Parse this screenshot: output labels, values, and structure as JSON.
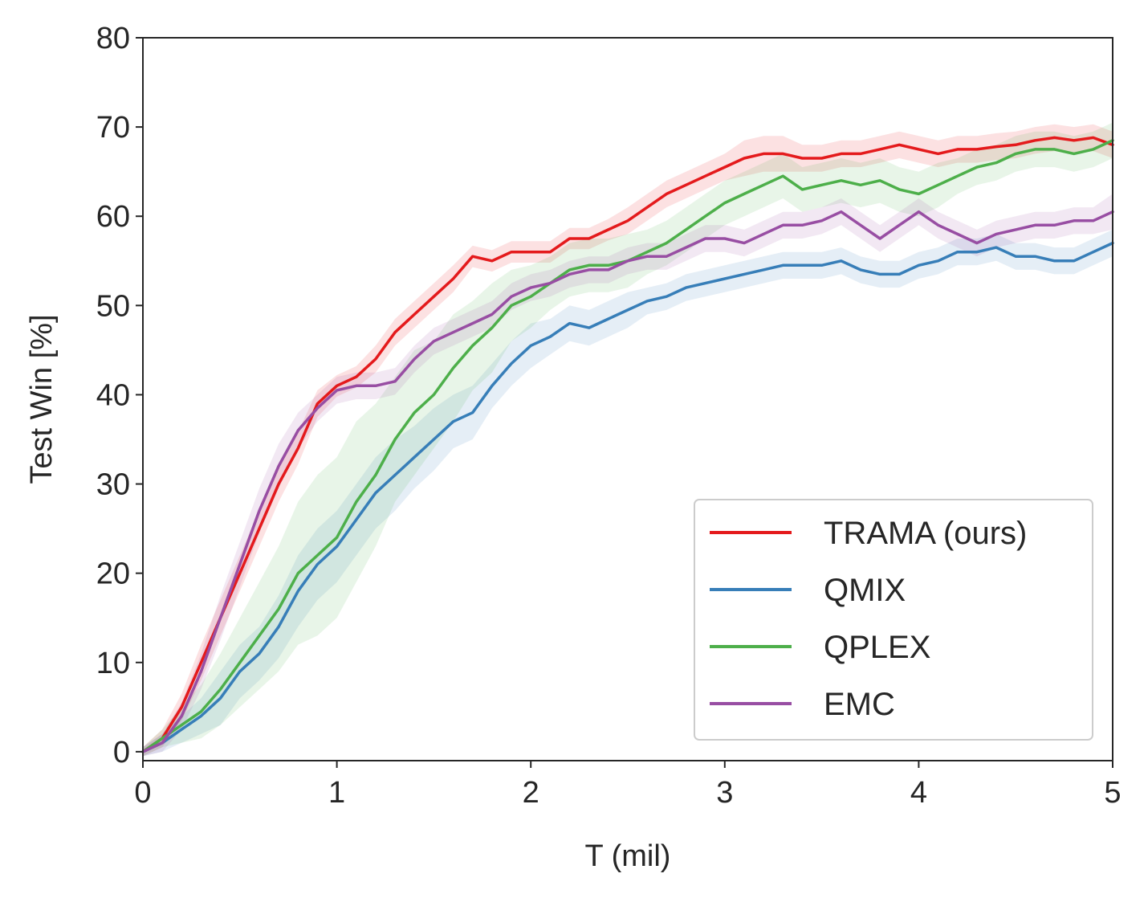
{
  "chart_data": {
    "type": "line",
    "title": "",
    "xlabel": "T (mil)",
    "ylabel": "Test Win [%]",
    "xlim": [
      0,
      5
    ],
    "ylim": [
      -1,
      80
    ],
    "xticks": [
      "0",
      "1",
      "2",
      "3",
      "4",
      "5"
    ],
    "yticks": [
      "0",
      "10",
      "20",
      "30",
      "40",
      "50",
      "60",
      "70",
      "80"
    ],
    "grid": false,
    "legend_position": "lower-right",
    "series": [
      {
        "name": "TRAMA (ours)",
        "color": "#e41a1c",
        "x": [
          0,
          0.1,
          0.2,
          0.3,
          0.4,
          0.5,
          0.6,
          0.7,
          0.8,
          0.9,
          1.0,
          1.1,
          1.2,
          1.3,
          1.4,
          1.5,
          1.6,
          1.7,
          1.8,
          1.9,
          2.0,
          2.1,
          2.2,
          2.3,
          2.4,
          2.5,
          2.6,
          2.7,
          2.8,
          2.9,
          3.0,
          3.1,
          3.2,
          3.3,
          3.4,
          3.5,
          3.6,
          3.7,
          3.8,
          3.9,
          4.0,
          4.1,
          4.2,
          4.3,
          4.4,
          4.5,
          4.6,
          4.7,
          4.8,
          4.9,
          5.0
        ],
        "values": [
          0,
          1.5,
          5,
          10,
          15,
          20,
          25,
          30,
          34,
          39,
          41,
          42,
          44,
          47,
          49,
          51,
          53,
          55.5,
          55,
          56,
          56,
          56,
          57.5,
          57.5,
          58.5,
          59.5,
          61,
          62.5,
          63.5,
          64.5,
          65.5,
          66.5,
          67,
          67,
          66.5,
          66.5,
          67,
          67,
          67.5,
          68,
          67.5,
          67,
          67.5,
          67.5,
          67.8,
          68,
          68.5,
          68.8,
          68.5,
          68.8,
          68
        ],
        "band": [
          0.5,
          1,
          1.5,
          2,
          2,
          2,
          2,
          2,
          1.8,
          1.5,
          1.2,
          1.2,
          1.5,
          1.5,
          1.5,
          1.5,
          1.5,
          1.2,
          1.2,
          1.2,
          1.2,
          1.2,
          1.2,
          1.2,
          1.2,
          1.5,
          1.5,
          1.5,
          1.5,
          1.5,
          1.5,
          2,
          2,
          2,
          1.5,
          1.5,
          1.5,
          1.5,
          1.5,
          1.5,
          1.5,
          1.5,
          1.5,
          1.5,
          1.5,
          1.5,
          1.5,
          1.5,
          1.5,
          1.5,
          1.5
        ]
      },
      {
        "name": "QMIX",
        "color": "#377eb8",
        "x": [
          0,
          0.1,
          0.2,
          0.3,
          0.4,
          0.5,
          0.6,
          0.7,
          0.8,
          0.9,
          1.0,
          1.1,
          1.2,
          1.3,
          1.4,
          1.5,
          1.6,
          1.7,
          1.8,
          1.9,
          2.0,
          2.1,
          2.2,
          2.3,
          2.4,
          2.5,
          2.6,
          2.7,
          2.8,
          2.9,
          3.0,
          3.1,
          3.2,
          3.3,
          3.4,
          3.5,
          3.6,
          3.7,
          3.8,
          3.9,
          4.0,
          4.1,
          4.2,
          4.3,
          4.4,
          4.5,
          4.6,
          4.7,
          4.8,
          4.9,
          5.0
        ],
        "values": [
          0,
          1,
          2.5,
          4,
          6,
          9,
          11,
          14,
          18,
          21,
          23,
          26,
          29,
          31,
          33,
          35,
          37,
          38,
          41,
          43.5,
          45.5,
          46.5,
          48,
          47.5,
          48.5,
          49.5,
          50.5,
          51,
          52,
          52.5,
          53,
          53.5,
          54,
          54.5,
          54.5,
          54.5,
          55,
          54,
          53.5,
          53.5,
          54.5,
          55,
          56,
          56,
          56.5,
          55.5,
          55.5,
          55,
          55,
          56,
          57
        ],
        "band": [
          0.5,
          1,
          1.5,
          2,
          3,
          3,
          3,
          3.5,
          4,
          4,
          4,
          4,
          4,
          4,
          3.5,
          3.5,
          3,
          3,
          2.5,
          2.5,
          2.5,
          2,
          2,
          2,
          2,
          2,
          1.5,
          1.5,
          1.5,
          1.5,
          1.5,
          1.5,
          1.5,
          1.5,
          1.5,
          1.5,
          1.5,
          1.5,
          1.5,
          1.5,
          1.5,
          1.5,
          1.5,
          1.5,
          1.5,
          1.5,
          1.5,
          1.5,
          1.5,
          1.5,
          1.5
        ]
      },
      {
        "name": "QPLEX",
        "color": "#4daf4a",
        "x": [
          0,
          0.1,
          0.2,
          0.3,
          0.4,
          0.5,
          0.6,
          0.7,
          0.8,
          0.9,
          1.0,
          1.1,
          1.2,
          1.3,
          1.4,
          1.5,
          1.6,
          1.7,
          1.8,
          1.9,
          2.0,
          2.1,
          2.2,
          2.3,
          2.4,
          2.5,
          2.6,
          2.7,
          2.8,
          2.9,
          3.0,
          3.1,
          3.2,
          3.3,
          3.4,
          3.5,
          3.6,
          3.7,
          3.8,
          3.9,
          4.0,
          4.1,
          4.2,
          4.3,
          4.4,
          4.5,
          4.6,
          4.7,
          4.8,
          4.9,
          5.0
        ],
        "values": [
          0,
          1.5,
          3,
          4.5,
          7,
          10,
          13,
          16,
          20,
          22,
          24,
          28,
          31,
          35,
          38,
          40,
          43,
          45.5,
          47.5,
          50,
          51,
          52.5,
          54,
          54.5,
          54.5,
          55,
          56,
          57,
          58.5,
          60,
          61.5,
          62.5,
          63.5,
          64.5,
          63,
          63.5,
          64,
          63.5,
          64,
          63,
          62.5,
          63.5,
          64.5,
          65.5,
          66,
          67,
          67.5,
          67.5,
          67,
          67.5,
          68.5
        ],
        "band": [
          0.5,
          1,
          2,
          3,
          4,
          5,
          6,
          7,
          8,
          9,
          9,
          9,
          8,
          7,
          7,
          6,
          6,
          5,
          5,
          4,
          3.5,
          3,
          3,
          3,
          3,
          3,
          2.5,
          2.5,
          2.5,
          2.5,
          2.5,
          2.5,
          2.5,
          2.5,
          2.5,
          2.5,
          2.5,
          2.5,
          2.5,
          2.5,
          2.5,
          2.5,
          2,
          2,
          2,
          2,
          2,
          2,
          2,
          2,
          2
        ]
      },
      {
        "name": "EMC",
        "color": "#984ea3",
        "x": [
          0,
          0.1,
          0.2,
          0.3,
          0.4,
          0.5,
          0.6,
          0.7,
          0.8,
          0.9,
          1.0,
          1.1,
          1.2,
          1.3,
          1.4,
          1.5,
          1.6,
          1.7,
          1.8,
          1.9,
          2.0,
          2.1,
          2.2,
          2.3,
          2.4,
          2.5,
          2.6,
          2.7,
          2.8,
          2.9,
          3.0,
          3.1,
          3.2,
          3.3,
          3.4,
          3.5,
          3.6,
          3.7,
          3.8,
          3.9,
          4.0,
          4.1,
          4.2,
          4.3,
          4.4,
          4.5,
          4.6,
          4.7,
          4.8,
          4.9,
          5.0
        ],
        "values": [
          0,
          1,
          4,
          9,
          15,
          21,
          27,
          32,
          36,
          38.5,
          40.5,
          41,
          41,
          41.5,
          44,
          46,
          47,
          48,
          49,
          51,
          52,
          52.5,
          53.5,
          54,
          54,
          55,
          55.5,
          55.5,
          56.5,
          57.5,
          57.5,
          57,
          58,
          59,
          59,
          59.5,
          60.5,
          59,
          57.5,
          59,
          60.5,
          59,
          58,
          57,
          58,
          58.5,
          59,
          59,
          59.5,
          59.5,
          60.5
        ],
        "band": [
          0.5,
          1,
          1.5,
          2,
          2.5,
          2.5,
          2.5,
          2.5,
          2,
          1.5,
          1.5,
          1.5,
          1.5,
          1.5,
          1.5,
          1.5,
          1.5,
          1.5,
          1.5,
          1.5,
          1.5,
          1.5,
          1.5,
          1.5,
          1.5,
          1.5,
          1.5,
          1.5,
          1.5,
          1.5,
          1.5,
          1.5,
          1.5,
          1.5,
          1.5,
          1.5,
          1.5,
          1.5,
          1.5,
          1.5,
          1.5,
          1.5,
          1.5,
          1.5,
          1.5,
          1.5,
          1.5,
          1.5,
          1.5,
          1.5,
          2
        ]
      }
    ]
  }
}
